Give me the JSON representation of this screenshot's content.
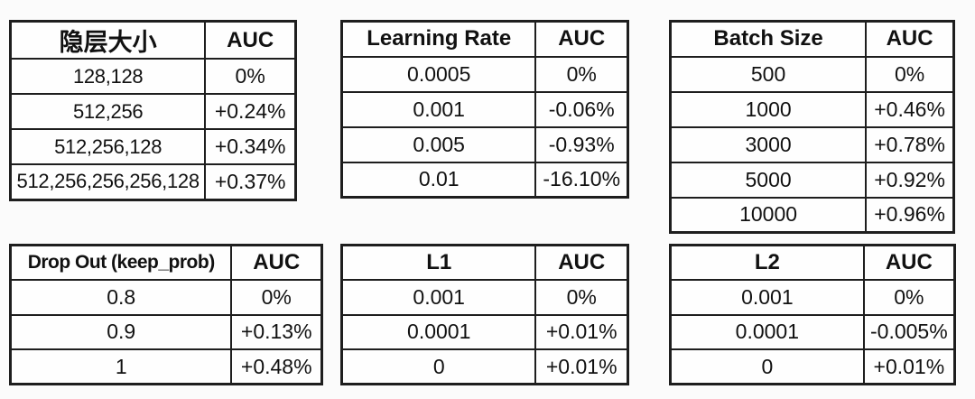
{
  "page": {
    "background": "#fbfbfb",
    "border_color": "#1e1e1e",
    "text_color": "#111111"
  },
  "tables": [
    {
      "name": "hidden-layer-size",
      "headers": [
        "隐层大小",
        "AUC"
      ],
      "rows": [
        [
          "128,128",
          "0%"
        ],
        [
          "512,256",
          "+0.24%"
        ],
        [
          "512,256,128",
          "+0.34%"
        ],
        [
          "512,256,256,256,128",
          "+0.37%"
        ]
      ]
    },
    {
      "name": "learning-rate",
      "headers": [
        "Learning Rate",
        "AUC"
      ],
      "rows": [
        [
          "0.0005",
          "0%"
        ],
        [
          "0.001",
          "-0.06%"
        ],
        [
          "0.005",
          "-0.93%"
        ],
        [
          "0.01",
          "-16.10%"
        ]
      ]
    },
    {
      "name": "batch-size",
      "headers": [
        "Batch Size",
        "AUC"
      ],
      "rows": [
        [
          "500",
          "0%"
        ],
        [
          "1000",
          "+0.46%"
        ],
        [
          "3000",
          "+0.78%"
        ],
        [
          "5000",
          "+0.92%"
        ],
        [
          "10000",
          "+0.96%"
        ]
      ]
    },
    {
      "name": "drop-out-keep-prob",
      "headers": [
        "Drop Out (keep_prob)",
        "AUC"
      ],
      "rows": [
        [
          "0.8",
          "0%"
        ],
        [
          "0.9",
          "+0.13%"
        ],
        [
          "1",
          "+0.48%"
        ]
      ]
    },
    {
      "name": "l1-regularization",
      "headers": [
        "L1",
        "AUC"
      ],
      "rows": [
        [
          "0.001",
          "0%"
        ],
        [
          "0.0001",
          "+0.01%"
        ],
        [
          "0",
          "+0.01%"
        ]
      ]
    },
    {
      "name": "l2-regularization",
      "headers": [
        "L2",
        "AUC"
      ],
      "rows": [
        [
          "0.001",
          "0%"
        ],
        [
          "0.0001",
          "-0.005%"
        ],
        [
          "0",
          "+0.01%"
        ]
      ]
    }
  ]
}
